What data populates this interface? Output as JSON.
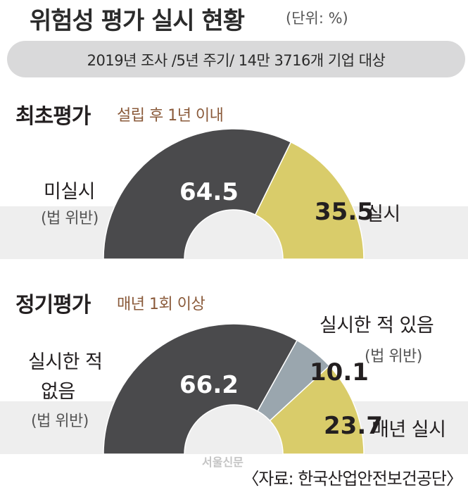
{
  "title": "위험성 평가 실시 현황",
  "unit": "(단위: %)",
  "survey_info": "2019년 조사 /5년 주기/ 14만 3716개 기업 대상",
  "source": "〈자료: 한국산업안전보건공단〉",
  "watermark": "서울신문",
  "colors": {
    "dark": "#4a4a4c",
    "yellow": "#d9cc6a",
    "blue": "#9aa6ae",
    "band": "#eeeeee"
  },
  "chart_data": [
    {
      "type": "pie",
      "title": "최초평가",
      "subtitle": "설립 후 1년 이내",
      "slices": [
        {
          "label": "미실시",
          "note": "(법 위반)",
          "value": 64.5,
          "value_label": "64.5",
          "color": "#4a4a4c"
        },
        {
          "label": "실시",
          "note": "",
          "value": 35.5,
          "value_label": "35.5",
          "color": "#d9cc6a"
        }
      ]
    },
    {
      "type": "pie",
      "title": "정기평가",
      "subtitle": "매년 1회 이상",
      "slices": [
        {
          "label": "실시한 적 없음",
          "note": "(법 위반)",
          "value": 66.2,
          "value_label": "66.2",
          "color": "#4a4a4c"
        },
        {
          "label": "실시한 적 있음",
          "note": "(법 위반)",
          "value": 10.1,
          "value_label": "10.1",
          "color": "#9aa6ae"
        },
        {
          "label": "매년 실시",
          "note": "",
          "value": 23.7,
          "value_label": "23.7",
          "color": "#d9cc6a"
        }
      ]
    }
  ]
}
